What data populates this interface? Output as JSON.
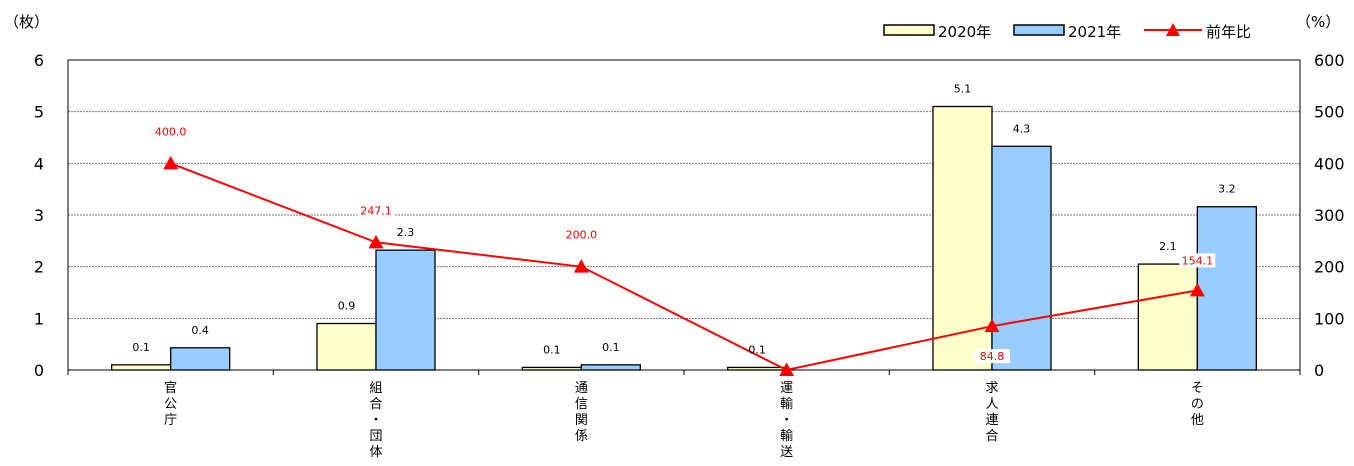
{
  "chart_data": {
    "type": "bar",
    "categories": [
      "官公庁",
      "組合・団体",
      "通信関係",
      "運輸・輸送",
      "求人連合",
      "その他"
    ],
    "series": [
      {
        "name": "2020年",
        "values": [
          0.1,
          0.9,
          0.05,
          0.05,
          5.1,
          2.05
        ],
        "labels": [
          "0.1",
          "0.9",
          "0.1",
          "0.1",
          "5.1",
          "2.1"
        ],
        "color": "#ffffcc",
        "axis": "left"
      },
      {
        "name": "2021年",
        "values": [
          0.43,
          2.32,
          0.1,
          0.0,
          4.33,
          3.16
        ],
        "labels": [
          "0.4",
          "2.3",
          "0.1",
          "",
          "4.3",
          "3.2"
        ],
        "color": "#99ccff",
        "axis": "left"
      }
    ],
    "line_series": {
      "name": "前年比",
      "values": [
        400.0,
        247.1,
        200.0,
        0,
        84.8,
        154.1
      ],
      "labels": [
        "400.0",
        "247.1",
        "200.0",
        "",
        "84.8",
        "154.1"
      ],
      "color": "#ff0000",
      "axis": "right"
    },
    "ylabel_left": "（枚）",
    "ylabel_right": "（%）",
    "yticks_left": [
      "0",
      "1",
      "2",
      "3",
      "4",
      "5",
      "6"
    ],
    "yticks_right": [
      "0",
      "100",
      "200",
      "300",
      "400",
      "500",
      "600"
    ],
    "ylim_left": [
      0,
      6
    ],
    "ylim_right": [
      0,
      600
    ],
    "grid": true,
    "legend_position": "top-right"
  }
}
